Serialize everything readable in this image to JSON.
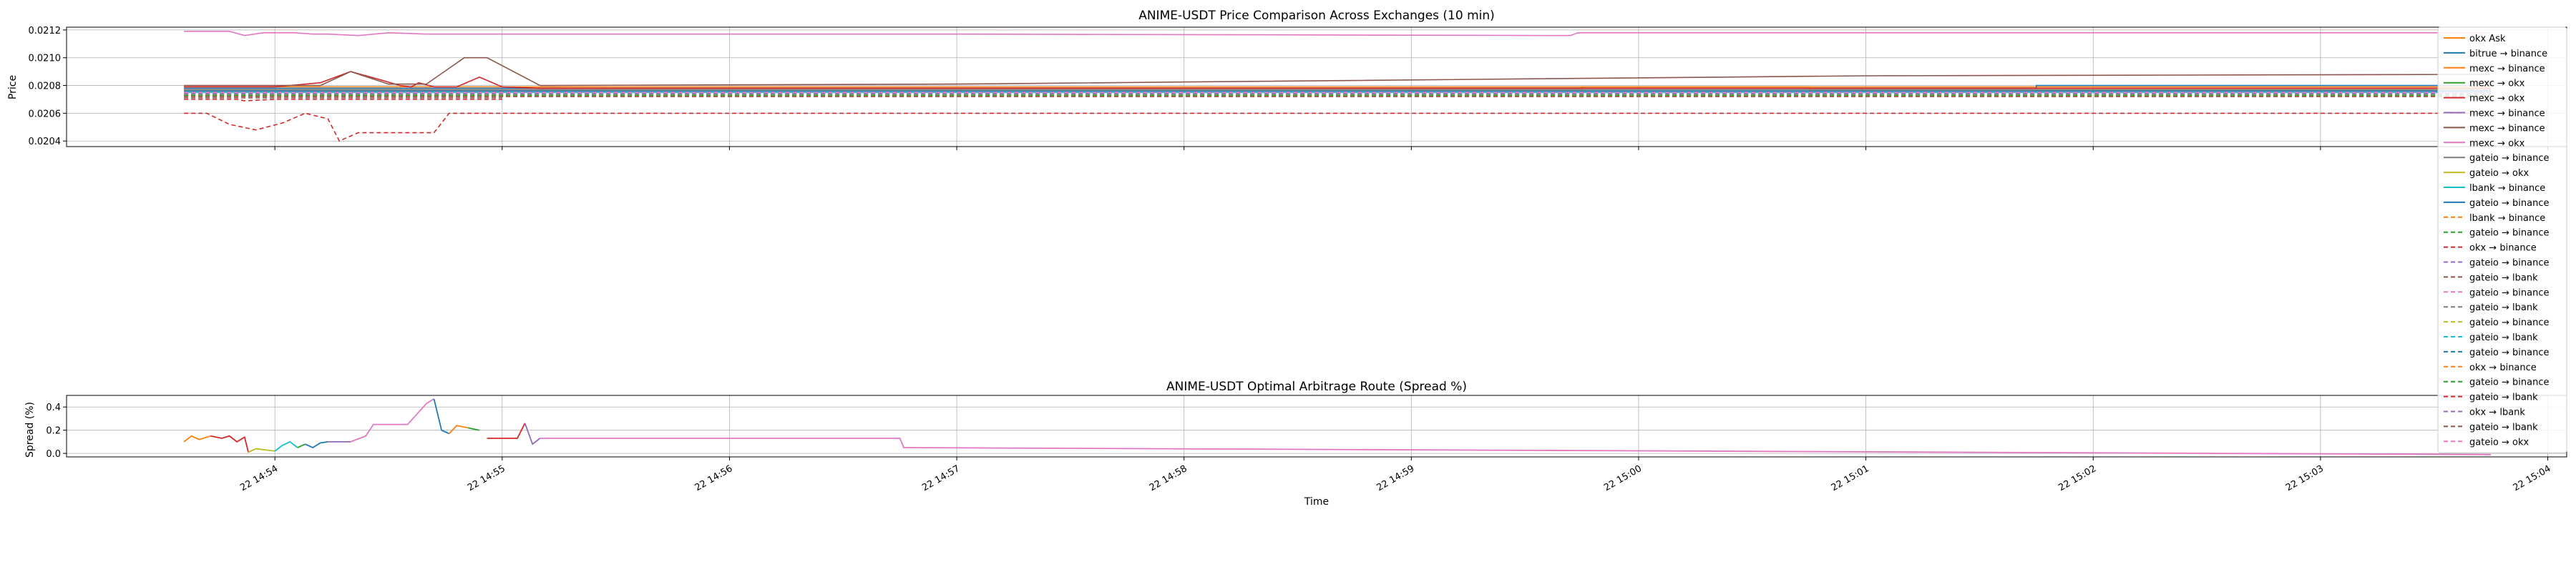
{
  "chart_data": [
    {
      "type": "line",
      "title": "ANIME-USDT Price Comparison Across Exchanges (10 min)",
      "ylabel": "Price",
      "xlabel": "",
      "ylim": [
        0.02036,
        0.02122
      ],
      "y_ticks": [
        0.0204,
        0.0206,
        0.0208,
        0.021,
        0.0212
      ],
      "y_tick_labels": [
        "0.0204",
        "0.0206",
        "0.0208",
        "0.0210",
        "0.0212"
      ],
      "grid": true,
      "legend_position": "right",
      "series": [
        {
          "name": "okx Ask",
          "color": "#ff7f0e",
          "dashed": false,
          "points": [
            [
              "14:53:36",
              0.02079
            ],
            [
              "14:54:00",
              0.02079
            ],
            [
              "14:56:00",
              0.02079
            ],
            [
              "14:58:00",
              0.02079
            ],
            [
              "15:00:00",
              0.02079
            ],
            [
              "15:03:45",
              0.02079
            ]
          ]
        },
        {
          "name": "bitrue → binance",
          "color": "#1f77b4",
          "dashed": false,
          "points": [
            [
              "14:53:36",
              0.02078
            ],
            [
              "14:56:00",
              0.02078
            ],
            [
              "15:01:45",
              0.02078
            ],
            [
              "15:01:45",
              0.0208
            ],
            [
              "15:03:45",
              0.0208
            ]
          ]
        },
        {
          "name": "mexc → binance",
          "color": "#ff7f0e",
          "dashed": false,
          "points": [
            [
              "14:53:36",
              0.02077
            ],
            [
              "14:59:45",
              0.02077
            ],
            [
              "14:59:45",
              0.02079
            ],
            [
              "15:00:45",
              0.02079
            ],
            [
              "15:00:45",
              0.02077
            ],
            [
              "15:03:45",
              0.02077
            ]
          ]
        },
        {
          "name": "mexc → okx",
          "color": "#2ca02c",
          "dashed": false,
          "points": [
            [
              "14:53:36",
              0.02076
            ],
            [
              "14:55:00",
              0.02076
            ],
            [
              "14:58:00",
              0.02076
            ],
            [
              "15:03:45",
              0.02076
            ]
          ]
        },
        {
          "name": "mexc → okx",
          "color": "#d62728",
          "dashed": false,
          "points": [
            [
              "14:53:36",
              0.02079
            ],
            [
              "14:54:00",
              0.02079
            ],
            [
              "14:54:12",
              0.02082
            ],
            [
              "14:54:20",
              0.0209
            ],
            [
              "14:54:28",
              0.02084
            ],
            [
              "14:54:33",
              0.0208
            ],
            [
              "14:54:36",
              0.02079
            ],
            [
              "14:54:38",
              0.02082
            ],
            [
              "14:54:42",
              0.02079
            ],
            [
              "14:54:48",
              0.02079
            ],
            [
              "14:54:54",
              0.02086
            ],
            [
              "14:55:00",
              0.02079
            ],
            [
              "14:55:10",
              0.02078
            ],
            [
              "15:03:45",
              0.02078
            ]
          ]
        },
        {
          "name": "mexc → binance",
          "color": "#9467bd",
          "dashed": false,
          "points": [
            [
              "14:53:36",
              0.02076
            ],
            [
              "15:03:45",
              0.02076
            ]
          ]
        },
        {
          "name": "mexc → binance",
          "color": "#8c564b",
          "dashed": false,
          "points": [
            [
              "14:53:36",
              0.0208
            ],
            [
              "14:54:00",
              0.0208
            ],
            [
              "14:54:12",
              0.0208
            ],
            [
              "14:54:20",
              0.0209
            ],
            [
              "14:54:30",
              0.02081
            ],
            [
              "14:54:40",
              0.02081
            ],
            [
              "14:54:50",
              0.021
            ],
            [
              "14:54:56",
              0.021
            ],
            [
              "14:55:10",
              0.0208
            ],
            [
              "14:57:00",
              0.02081
            ],
            [
              "15:01:00",
              0.02087
            ],
            [
              "15:03:45",
              0.02088
            ]
          ]
        },
        {
          "name": "mexc → okx",
          "color": "#e377c2",
          "dashed": false,
          "points": [
            [
              "14:53:36",
              0.02119
            ],
            [
              "14:53:48",
              0.02119
            ],
            [
              "14:53:52",
              0.02116
            ],
            [
              "14:53:57",
              0.02118
            ],
            [
              "14:54:05",
              0.02118
            ],
            [
              "14:54:10",
              0.02117
            ],
            [
              "14:54:14",
              0.02117
            ],
            [
              "14:54:22",
              0.02116
            ],
            [
              "14:54:30",
              0.02118
            ],
            [
              "14:54:40",
              0.02117
            ],
            [
              "14:55:00",
              0.02117
            ],
            [
              "14:57:00",
              0.02117
            ],
            [
              "14:59:42",
              0.02116
            ],
            [
              "14:59:44",
              0.02118
            ],
            [
              "15:03:45",
              0.02118
            ]
          ]
        },
        {
          "name": "gateio → binance",
          "color": "#7f7f7f",
          "dashed": false,
          "points": [
            [
              "14:53:36",
              0.02077
            ],
            [
              "15:03:45",
              0.02077
            ]
          ]
        },
        {
          "name": "gateio → okx",
          "color": "#bcbd22",
          "dashed": false,
          "points": [
            [
              "14:53:36",
              0.02075
            ],
            [
              "15:03:45",
              0.02075
            ]
          ]
        },
        {
          "name": "lbank → binance",
          "color": "#17becf",
          "dashed": false,
          "points": [
            [
              "14:53:36",
              0.02075
            ],
            [
              "15:03:45",
              0.02075
            ]
          ]
        },
        {
          "name": "gateio → binance",
          "color": "#1f77b4",
          "dashed": false,
          "points": [
            [
              "14:53:36",
              0.02076
            ],
            [
              "15:03:45",
              0.02076
            ]
          ]
        },
        {
          "name": "lbank → binance",
          "color": "#ff7f0e",
          "dashed": true,
          "points": [
            [
              "14:53:36",
              0.02072
            ],
            [
              "15:03:45",
              0.02072
            ]
          ]
        },
        {
          "name": "gateio → binance",
          "color": "#2ca02c",
          "dashed": true,
          "points": [
            [
              "14:53:36",
              0.02073
            ],
            [
              "15:03:45",
              0.02073
            ]
          ]
        },
        {
          "name": "okx → binance",
          "color": "#d62728",
          "dashed": true,
          "points": [
            [
              "14:53:36",
              0.0206
            ],
            [
              "14:53:42",
              0.0206
            ],
            [
              "14:53:48",
              0.02052
            ],
            [
              "14:53:55",
              0.02048
            ],
            [
              "14:54:02",
              0.02053
            ],
            [
              "14:54:08",
              0.0206
            ],
            [
              "14:54:14",
              0.02056
            ],
            [
              "14:54:17",
              0.0204
            ],
            [
              "14:54:22",
              0.02046
            ],
            [
              "14:54:30",
              0.02046
            ],
            [
              "14:54:42",
              0.02046
            ],
            [
              "14:54:46",
              0.0206
            ],
            [
              "15:03:45",
              0.0206
            ]
          ]
        },
        {
          "name": "gateio → binance",
          "color": "#9467bd",
          "dashed": true,
          "points": [
            [
              "14:53:36",
              0.02074
            ],
            [
              "15:03:45",
              0.02074
            ]
          ]
        },
        {
          "name": "gateio → lbank",
          "color": "#8c564b",
          "dashed": true,
          "points": [
            [
              "14:53:36",
              0.02071
            ],
            [
              "14:55:00",
              0.02071
            ]
          ]
        },
        {
          "name": "gateio → binance",
          "color": "#e377c2",
          "dashed": true,
          "points": [
            [
              "14:53:36",
              0.02074
            ],
            [
              "15:03:45",
              0.02074
            ]
          ]
        },
        {
          "name": "gateio → lbank",
          "color": "#7f7f7f",
          "dashed": true,
          "points": [
            [
              "14:53:36",
              0.02073
            ],
            [
              "15:03:45",
              0.02073
            ]
          ]
        },
        {
          "name": "gateio → binance",
          "color": "#bcbd22",
          "dashed": true,
          "points": [
            [
              "14:53:36",
              0.02074
            ],
            [
              "15:03:45",
              0.02074
            ]
          ]
        },
        {
          "name": "gateio → lbank",
          "color": "#17becf",
          "dashed": true,
          "points": [
            [
              "14:53:36",
              0.02075
            ],
            [
              "15:03:45",
              0.02075
            ]
          ]
        },
        {
          "name": "gateio → binance",
          "color": "#1f77b4",
          "dashed": true,
          "points": [
            [
              "14:53:36",
              0.02076
            ],
            [
              "15:03:45",
              0.02076
            ]
          ]
        },
        {
          "name": "okx → binance",
          "color": "#ff7f0e",
          "dashed": true,
          "points": [
            [
              "14:53:36",
              0.02073
            ],
            [
              "15:03:45",
              0.02073
            ]
          ]
        },
        {
          "name": "gateio → binance",
          "color": "#2ca02c",
          "dashed": true,
          "points": [
            [
              "14:53:36",
              0.02073
            ],
            [
              "15:03:45",
              0.02073
            ]
          ]
        },
        {
          "name": "gateio → lbank",
          "color": "#d62728",
          "dashed": true,
          "points": [
            [
              "14:53:36",
              0.0207
            ],
            [
              "14:53:50",
              0.0207
            ],
            [
              "14:53:52",
              0.02069
            ],
            [
              "14:54:00",
              0.0207
            ],
            [
              "14:55:00",
              0.0207
            ]
          ]
        },
        {
          "name": "okx → lbank",
          "color": "#9467bd",
          "dashed": true,
          "points": [
            [
              "14:53:36",
              0.02074
            ],
            [
              "15:03:45",
              0.02074
            ]
          ]
        },
        {
          "name": "gateio → lbank",
          "color": "#8c564b",
          "dashed": true,
          "points": [
            [
              "14:53:36",
              0.02072
            ],
            [
              "15:03:45",
              0.02072
            ]
          ]
        },
        {
          "name": "gateio → okx",
          "color": "#e377c2",
          "dashed": true,
          "points": [
            [
              "14:53:36",
              0.02075
            ],
            [
              "15:03:45",
              0.02075
            ]
          ]
        }
      ]
    },
    {
      "type": "line",
      "title": "ANIME-USDT Optimal Arbitrage Route (Spread %)",
      "ylabel": "Spread (%)",
      "xlabel": "Time",
      "ylim": [
        -0.03,
        0.5
      ],
      "y_ticks": [
        0.0,
        0.2,
        0.4
      ],
      "y_tick_labels": [
        "0.0",
        "0.2",
        "0.4"
      ],
      "grid": true,
      "segments": [
        {
          "color": "#ff7f0e",
          "points": [
            [
              "14:53:36",
              0.1
            ],
            [
              "14:53:38",
              0.15
            ],
            [
              "14:53:40",
              0.12
            ],
            [
              "14:53:43",
              0.15
            ]
          ]
        },
        {
          "color": "#d62728",
          "points": [
            [
              "14:53:43",
              0.15
            ],
            [
              "14:53:46",
              0.13
            ],
            [
              "14:53:48",
              0.15
            ],
            [
              "14:53:50",
              0.1
            ],
            [
              "14:53:52",
              0.14
            ],
            [
              "14:53:53",
              0.01
            ]
          ]
        },
        {
          "color": "#bcbd22",
          "points": [
            [
              "14:53:53",
              0.01
            ],
            [
              "14:53:55",
              0.04
            ],
            [
              "14:54:00",
              0.02
            ]
          ]
        },
        {
          "color": "#17becf",
          "points": [
            [
              "14:54:00",
              0.02
            ],
            [
              "14:54:02",
              0.07
            ],
            [
              "14:54:04",
              0.1
            ],
            [
              "14:54:06",
              0.05
            ]
          ]
        },
        {
          "color": "#2ca02c",
          "points": [
            [
              "14:54:06",
              0.05
            ],
            [
              "14:54:08",
              0.08
            ]
          ]
        },
        {
          "color": "#1f77b4",
          "points": [
            [
              "14:54:08",
              0.08
            ],
            [
              "14:54:10",
              0.05
            ],
            [
              "14:54:12",
              0.09
            ],
            [
              "14:54:14",
              0.1
            ]
          ]
        },
        {
          "color": "#9467bd",
          "points": [
            [
              "14:54:14",
              0.1
            ],
            [
              "14:54:20",
              0.1
            ]
          ]
        },
        {
          "color": "#e377c2",
          "points": [
            [
              "14:54:20",
              0.1
            ],
            [
              "14:54:24",
              0.15
            ],
            [
              "14:54:26",
              0.25
            ],
            [
              "14:54:35",
              0.25
            ],
            [
              "14:54:37",
              0.32
            ],
            [
              "14:54:40",
              0.43
            ],
            [
              "14:54:42",
              0.47
            ]
          ]
        },
        {
          "color": "#1f77b4",
          "points": [
            [
              "14:54:42",
              0.47
            ],
            [
              "14:54:44",
              0.2
            ],
            [
              "14:54:46",
              0.17
            ]
          ]
        },
        {
          "color": "#ff7f0e",
          "points": [
            [
              "14:54:46",
              0.17
            ],
            [
              "14:54:48",
              0.24
            ],
            [
              "14:54:51",
              0.22
            ]
          ]
        },
        {
          "color": "#2ca02c",
          "points": [
            [
              "14:54:51",
              0.22
            ],
            [
              "14:54:54",
              0.2
            ]
          ]
        },
        {
          "color": "#d62728",
          "points": [
            [
              "14:54:56",
              0.13
            ],
            [
              "14:55:04",
              0.13
            ],
            [
              "14:55:06",
              0.26
            ]
          ]
        },
        {
          "color": "#9467bd",
          "points": [
            [
              "14:55:06",
              0.26
            ],
            [
              "14:55:08",
              0.08
            ],
            [
              "14:55:10",
              0.13
            ]
          ]
        },
        {
          "color": "#e377c2",
          "points": [
            [
              "14:55:10",
              0.13
            ],
            [
              "14:56:45",
              0.13
            ],
            [
              "14:56:46",
              0.05
            ],
            [
              "15:03:45",
              -0.01
            ]
          ]
        }
      ]
    }
  ],
  "x_axis": {
    "range": [
      "14:53:05",
      "15:04:05"
    ],
    "tick_times": [
      "14:54:00",
      "14:55:00",
      "14:56:00",
      "14:57:00",
      "14:58:00",
      "14:59:00",
      "15:00:00",
      "15:01:00",
      "15:02:00",
      "15:03:00",
      "15:04:00"
    ],
    "tick_labels": [
      "22 14:54",
      "22 14:55",
      "22 14:56",
      "22 14:57",
      "22 14:58",
      "22 14:59",
      "22 15:00",
      "22 15:01",
      "22 15:02",
      "22 15:03",
      "22 15:04"
    ]
  }
}
